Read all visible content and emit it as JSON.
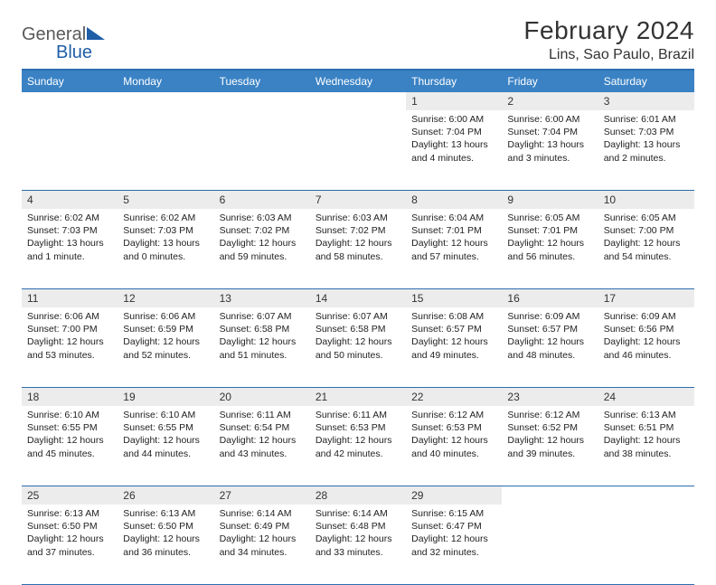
{
  "brand": {
    "name_a": "General",
    "name_b": "Blue"
  },
  "header": {
    "title": "February 2024",
    "location": "Lins, Sao Paulo, Brazil"
  },
  "colors": {
    "header_bg": "#3a82c4",
    "header_border": "#2b6daf",
    "daynum_bg": "#ececec",
    "text": "#222222",
    "page_bg": "#ffffff"
  },
  "weekdays": [
    "Sunday",
    "Monday",
    "Tuesday",
    "Wednesday",
    "Thursday",
    "Friday",
    "Saturday"
  ],
  "weeks": [
    [
      null,
      null,
      null,
      null,
      {
        "n": "1",
        "sunrise": "6:00 AM",
        "sunset": "7:04 PM",
        "daylight": "13 hours and 4 minutes."
      },
      {
        "n": "2",
        "sunrise": "6:00 AM",
        "sunset": "7:04 PM",
        "daylight": "13 hours and 3 minutes."
      },
      {
        "n": "3",
        "sunrise": "6:01 AM",
        "sunset": "7:03 PM",
        "daylight": "13 hours and 2 minutes."
      }
    ],
    [
      {
        "n": "4",
        "sunrise": "6:02 AM",
        "sunset": "7:03 PM",
        "daylight": "13 hours and 1 minute."
      },
      {
        "n": "5",
        "sunrise": "6:02 AM",
        "sunset": "7:03 PM",
        "daylight": "13 hours and 0 minutes."
      },
      {
        "n": "6",
        "sunrise": "6:03 AM",
        "sunset": "7:02 PM",
        "daylight": "12 hours and 59 minutes."
      },
      {
        "n": "7",
        "sunrise": "6:03 AM",
        "sunset": "7:02 PM",
        "daylight": "12 hours and 58 minutes."
      },
      {
        "n": "8",
        "sunrise": "6:04 AM",
        "sunset": "7:01 PM",
        "daylight": "12 hours and 57 minutes."
      },
      {
        "n": "9",
        "sunrise": "6:05 AM",
        "sunset": "7:01 PM",
        "daylight": "12 hours and 56 minutes."
      },
      {
        "n": "10",
        "sunrise": "6:05 AM",
        "sunset": "7:00 PM",
        "daylight": "12 hours and 54 minutes."
      }
    ],
    [
      {
        "n": "11",
        "sunrise": "6:06 AM",
        "sunset": "7:00 PM",
        "daylight": "12 hours and 53 minutes."
      },
      {
        "n": "12",
        "sunrise": "6:06 AM",
        "sunset": "6:59 PM",
        "daylight": "12 hours and 52 minutes."
      },
      {
        "n": "13",
        "sunrise": "6:07 AM",
        "sunset": "6:58 PM",
        "daylight": "12 hours and 51 minutes."
      },
      {
        "n": "14",
        "sunrise": "6:07 AM",
        "sunset": "6:58 PM",
        "daylight": "12 hours and 50 minutes."
      },
      {
        "n": "15",
        "sunrise": "6:08 AM",
        "sunset": "6:57 PM",
        "daylight": "12 hours and 49 minutes."
      },
      {
        "n": "16",
        "sunrise": "6:09 AM",
        "sunset": "6:57 PM",
        "daylight": "12 hours and 48 minutes."
      },
      {
        "n": "17",
        "sunrise": "6:09 AM",
        "sunset": "6:56 PM",
        "daylight": "12 hours and 46 minutes."
      }
    ],
    [
      {
        "n": "18",
        "sunrise": "6:10 AM",
        "sunset": "6:55 PM",
        "daylight": "12 hours and 45 minutes."
      },
      {
        "n": "19",
        "sunrise": "6:10 AM",
        "sunset": "6:55 PM",
        "daylight": "12 hours and 44 minutes."
      },
      {
        "n": "20",
        "sunrise": "6:11 AM",
        "sunset": "6:54 PM",
        "daylight": "12 hours and 43 minutes."
      },
      {
        "n": "21",
        "sunrise": "6:11 AM",
        "sunset": "6:53 PM",
        "daylight": "12 hours and 42 minutes."
      },
      {
        "n": "22",
        "sunrise": "6:12 AM",
        "sunset": "6:53 PM",
        "daylight": "12 hours and 40 minutes."
      },
      {
        "n": "23",
        "sunrise": "6:12 AM",
        "sunset": "6:52 PM",
        "daylight": "12 hours and 39 minutes."
      },
      {
        "n": "24",
        "sunrise": "6:13 AM",
        "sunset": "6:51 PM",
        "daylight": "12 hours and 38 minutes."
      }
    ],
    [
      {
        "n": "25",
        "sunrise": "6:13 AM",
        "sunset": "6:50 PM",
        "daylight": "12 hours and 37 minutes."
      },
      {
        "n": "26",
        "sunrise": "6:13 AM",
        "sunset": "6:50 PM",
        "daylight": "12 hours and 36 minutes."
      },
      {
        "n": "27",
        "sunrise": "6:14 AM",
        "sunset": "6:49 PM",
        "daylight": "12 hours and 34 minutes."
      },
      {
        "n": "28",
        "sunrise": "6:14 AM",
        "sunset": "6:48 PM",
        "daylight": "12 hours and 33 minutes."
      },
      {
        "n": "29",
        "sunrise": "6:15 AM",
        "sunset": "6:47 PM",
        "daylight": "12 hours and 32 minutes."
      },
      null,
      null
    ]
  ],
  "labels": {
    "sunrise": "Sunrise:",
    "sunset": "Sunset:",
    "daylight": "Daylight:"
  }
}
